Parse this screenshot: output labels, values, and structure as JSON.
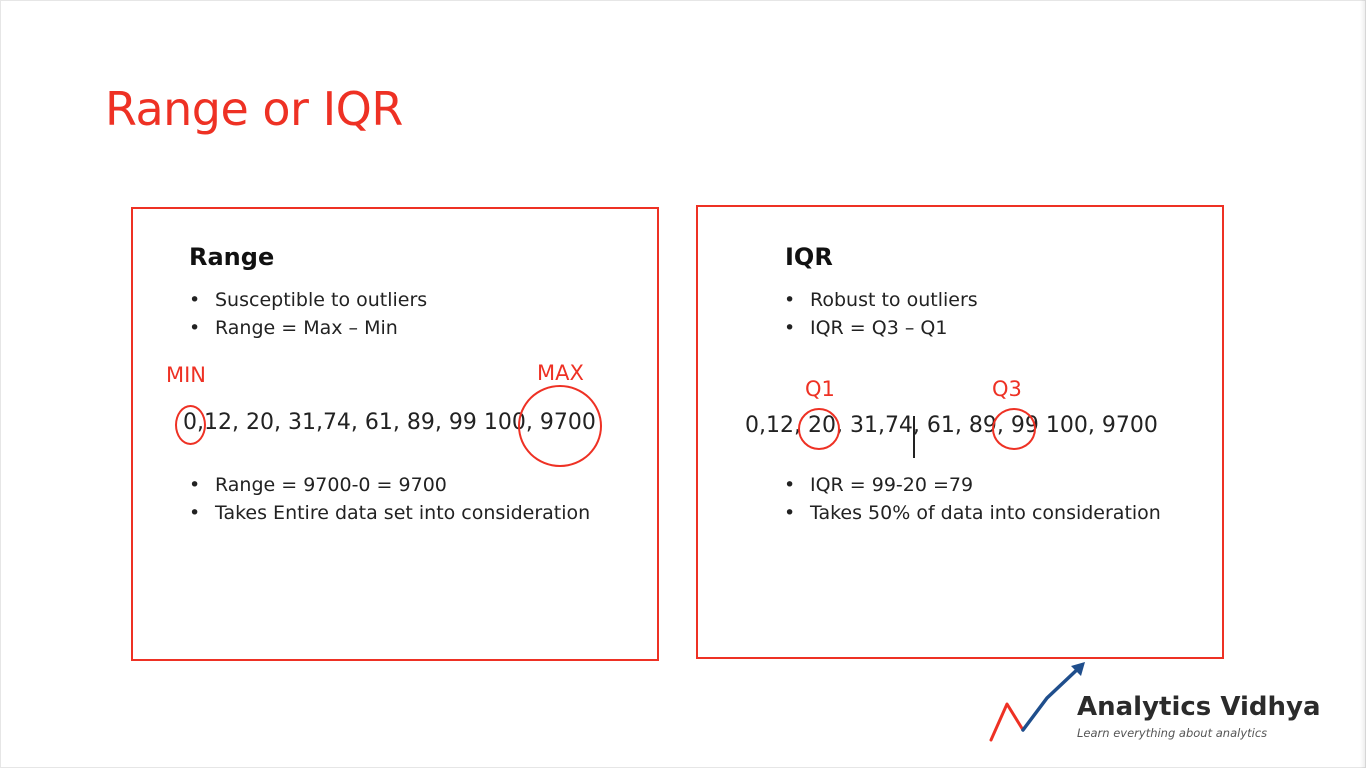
{
  "slide": {
    "title": "Range or IQR"
  },
  "range_panel": {
    "heading": "Range",
    "bullets_top": [
      "Susceptible to outliers",
      "Range = Max – Min"
    ],
    "min_label": "MIN",
    "max_label": "MAX",
    "sequence": "0,12, 20, 31,74, 61, 89, 99 100, 9700",
    "bullets_bottom": [
      "Range = 9700-0 = 9700",
      "Takes Entire data set into consideration"
    ]
  },
  "iqr_panel": {
    "heading": "IQR",
    "bullets_top": [
      "Robust to outliers",
      "IQR = Q3 – Q1"
    ],
    "q1_label": "Q1",
    "q3_label": "Q3",
    "sequence": "0,12, 20, 31,74, 61, 89, 99 100, 9700",
    "bullets_bottom": [
      "IQR = 99-20 =79",
      "Takes 50% of data into consideration"
    ]
  },
  "logo": {
    "name": "Analytics Vidhya",
    "tagline": "Learn everything about analytics"
  },
  "colors": {
    "accent": "#ee3124",
    "logo_arrow": "#1f4e8c",
    "text": "#222222"
  }
}
